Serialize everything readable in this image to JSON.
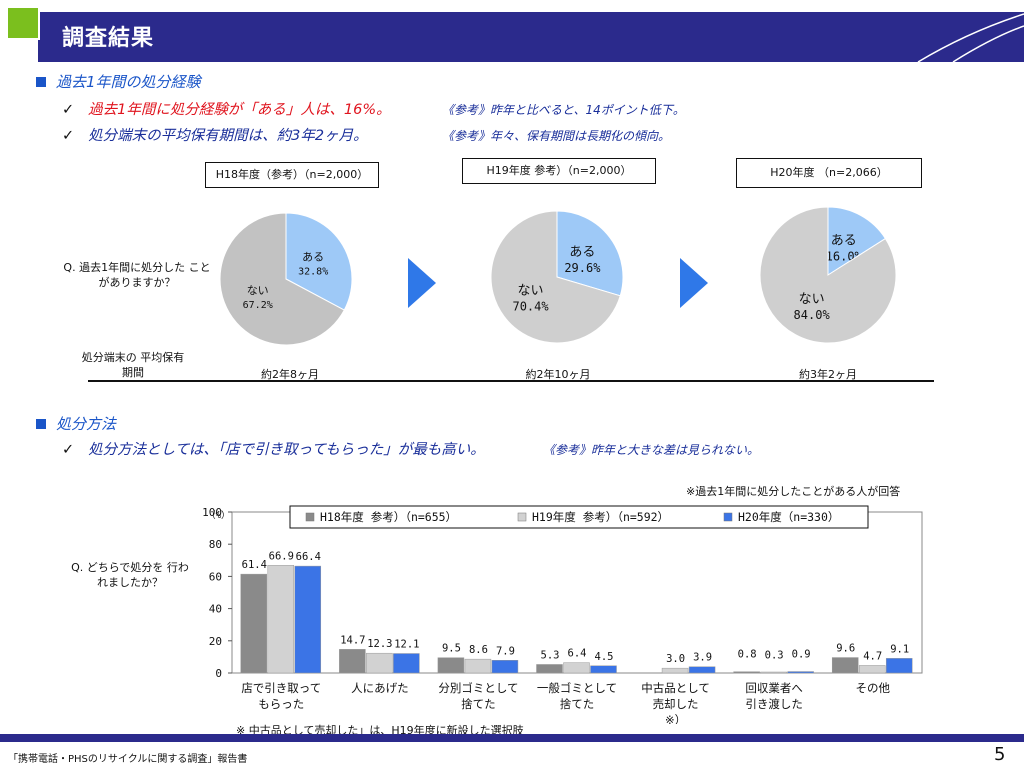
{
  "header": {
    "title": "調査結果"
  },
  "section1": {
    "heading": "過去1年間の処分経験",
    "bullet1": {
      "check": "✓",
      "text": "過去1年間に処分経験が「ある」人は、16%。",
      "note": "《参考》昨年と比べると、14ポイント低下。"
    },
    "bullet2": {
      "check": "✓",
      "text": "処分端末の平均保有期間は、約3年2ヶ月。",
      "note": "《参考》年々、保有期間は長期化の傾向。"
    },
    "question": "Q. 過去1年間に処分した ことがありますか？",
    "period_label": "処分端末の 平均保有期間",
    "years": [
      {
        "label": "H18年度（参考）（n=2,000）",
        "period": "約2年8ヶ月"
      },
      {
        "label": "H19年度 参考）（n=2,000）",
        "period": "約2年10ヶ月"
      },
      {
        "label": "H20年度 （n=2,066）",
        "period": "約3年2ヶ月"
      }
    ]
  },
  "section2": {
    "heading": "処分方法",
    "bullet": {
      "check": "✓",
      "text": "処分方法としては、「店で引き取ってもらった」が最も高い。",
      "note": "《参考》昨年と大きな差は見られない。"
    },
    "respondent_note": "※過去1年間に処分したことがある人が回答",
    "question": "Q. どちらで処分を 行われましたか？",
    "footnote": "※ 中古品として売却した」は、H19年度に新設した選択肢"
  },
  "chart_data": [
    {
      "type": "pie",
      "title": "H18年度（参考）（n=2,000）",
      "slices": [
        {
          "label": "ある",
          "value": 32.8,
          "value_label": "32.8%",
          "color": "#9ec9f7"
        },
        {
          "label": "ない",
          "value": 67.2,
          "value_label": "67.2%",
          "color": "#c2c2c2"
        }
      ]
    },
    {
      "type": "pie",
      "title": "H19年度 参考）（n=2,000）",
      "slices": [
        {
          "label": "ある",
          "value": 29.6,
          "value_label": "29.6%",
          "color": "#9ec9f7"
        },
        {
          "label": "ない",
          "value": 70.4,
          "value_label": "70.4%",
          "color": "#cfcfcf"
        }
      ]
    },
    {
      "type": "pie",
      "title": "H20年度 （n=2,066）",
      "slices": [
        {
          "label": "ある",
          "value": 16.0,
          "value_label": "16.0%",
          "color": "#9ec9f7"
        },
        {
          "label": "ない",
          "value": 84.0,
          "value_label": "84.0%",
          "color": "#cfcfcf"
        }
      ]
    },
    {
      "type": "bar",
      "categories": [
        "店で引き取って もらった",
        "人にあげた",
        "分別ゴミとして 捨てた",
        "一般ゴミとして 捨てた",
        "中古品として 売却した ※）",
        "回収業者へ 引き渡した",
        "その他"
      ],
      "series": [
        {
          "name": "H18年度 参考）（n=655）",
          "color": "#8a8a8a",
          "values": [
            61.4,
            14.7,
            9.5,
            5.3,
            null,
            0.8,
            9.6
          ]
        },
        {
          "name": "H19年度 参考）（n=592）",
          "color": "#d2d2d2",
          "values": [
            66.9,
            12.3,
            8.6,
            6.4,
            3.0,
            0.3,
            4.7
          ]
        },
        {
          "name": "H20年度（n=330）",
          "color": "#3b74e6",
          "values": [
            66.4,
            12.1,
            7.9,
            4.5,
            3.9,
            0.9,
            9.1
          ]
        }
      ],
      "value_labels": [
        [
          "61.4",
          "14.7",
          "9.5",
          "5.3",
          "",
          "0.8",
          "9.6"
        ],
        [
          "66.9",
          "12.3",
          "8.6",
          "6.4",
          "3.0",
          "0.3",
          "4.7"
        ],
        [
          "66.4",
          "12.1",
          "7.9",
          "4.5",
          "3.9",
          "0.9",
          "9.1"
        ]
      ],
      "ylim": [
        0,
        100
      ],
      "yticks": [
        "0",
        "20",
        "40",
        "60",
        "80",
        "100"
      ],
      "yunit": "（%）",
      "legend": "top"
    }
  ],
  "footer": {
    "text": "「携帯電話・PHSのリサイクルに関する調査」報告書",
    "page": "5"
  }
}
